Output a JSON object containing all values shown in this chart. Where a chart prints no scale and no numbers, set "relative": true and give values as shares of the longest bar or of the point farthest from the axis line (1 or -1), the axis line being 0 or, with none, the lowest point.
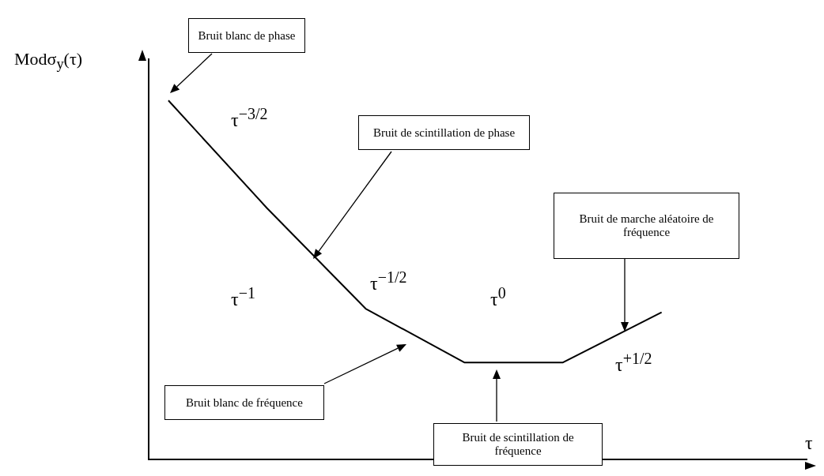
{
  "chart_data": {
    "type": "line",
    "relative": true,
    "ylabel": "Modσ$_{y}$(τ)",
    "categories": [
      null,
      null,
      null,
      null,
      null,
      null
    ],
    "values": [
      1,
      0.7,
      0.42,
      0.27,
      0.27,
      0.41
    ],
    "color": "#000000",
    "marker": "none",
    "annotations": [
      "Bruit blanc de phase",
      "Bruit de scintillation de phase",
      "Bruit de marche aléatoire de fréquence",
      "Bruit blanc de fréquence",
      "Bruit de scintillation de fréquence",
      "τ$^{−3/2}$",
      "τ$^{−1}$",
      "τ$^{−1/2}$",
      "τ$^{0}$",
      "τ$^{+1/2}$",
      "τ"
    ]
  }
}
